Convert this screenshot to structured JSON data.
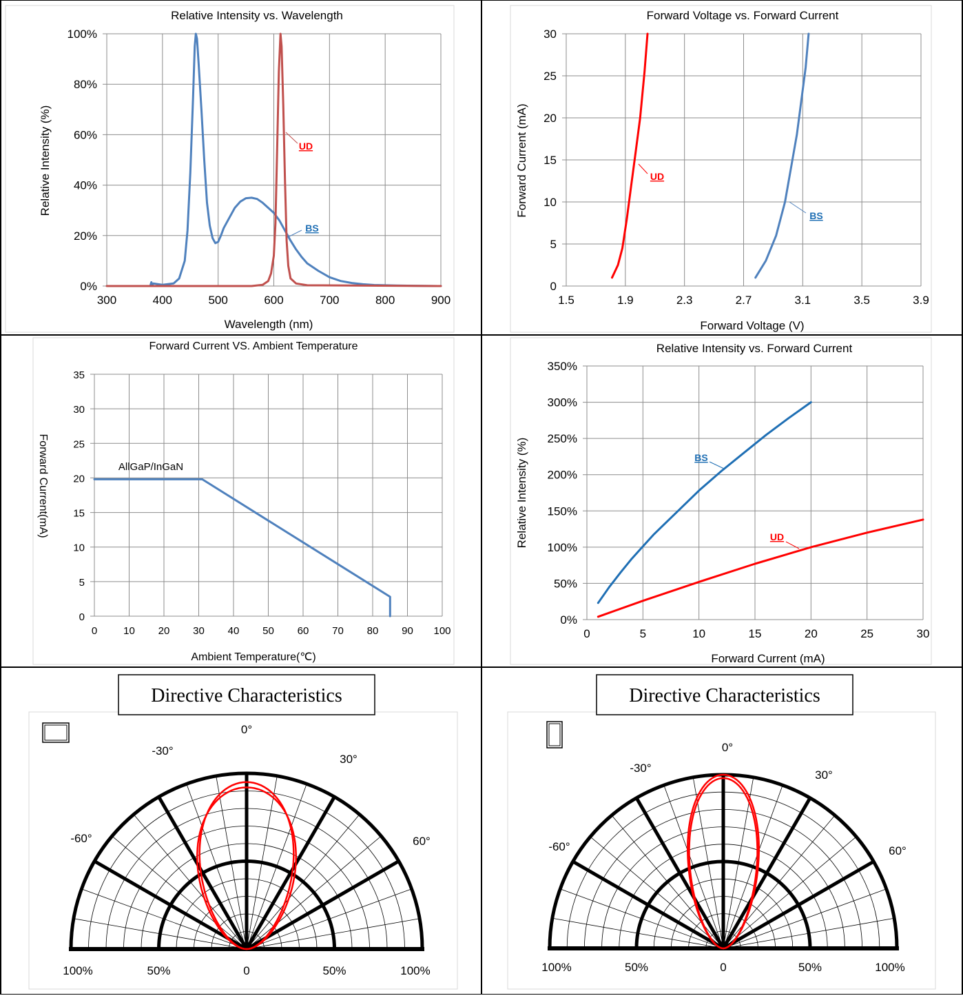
{
  "colors": {
    "blue": "#4f81bd",
    "blue_dark": "#1f6fb4",
    "red": "#ff0000",
    "red_dark": "#c0504d",
    "grid": "#8c8c8c",
    "frame": "#d9d9d9",
    "black": "#000000"
  },
  "chart_data": [
    {
      "type": "line",
      "title": "Relative Intensity vs. Wavelength",
      "xlabel": "Wavelength (nm)",
      "ylabel": "Relative Intensity (%)",
      "xlim": [
        300,
        900
      ],
      "ylim": [
        0,
        100
      ],
      "x_ticks": [
        "300",
        "400",
        "500",
        "600",
        "700",
        "800",
        "900"
      ],
      "y_ticks": [
        "0%",
        "20%",
        "40%",
        "60%",
        "80%",
        "100%"
      ],
      "grid": true,
      "series": [
        {
          "name": "BS",
          "color": "blue",
          "x": [
            378,
            380,
            382,
            384,
            400,
            420,
            430,
            440,
            445,
            450,
            455,
            458,
            460,
            462,
            465,
            470,
            475,
            480,
            485,
            490,
            495,
            500,
            505,
            510,
            520,
            530,
            540,
            550,
            560,
            570,
            580,
            590,
            600,
            610,
            620,
            630,
            640,
            650,
            660,
            680,
            700,
            720,
            740,
            760,
            780,
            800,
            820,
            850,
            900
          ],
          "y": [
            0,
            1.5,
            0.5,
            1,
            0.5,
            1,
            3,
            10,
            22,
            45,
            75,
            95,
            100,
            98,
            88,
            70,
            50,
            33,
            24,
            19,
            17,
            17.5,
            20,
            23,
            27,
            31,
            33.5,
            34.8,
            35,
            34.5,
            33,
            31,
            29,
            26,
            22,
            18,
            14.5,
            11.5,
            9,
            6,
            3.5,
            2,
            1.2,
            0.7,
            0.4,
            0.3,
            0.2,
            0.1,
            0
          ]
        },
        {
          "name": "UD",
          "color": "red_dark",
          "x": [
            300,
            560,
            580,
            590,
            595,
            600,
            603,
            606,
            609,
            612,
            614,
            617,
            620,
            623,
            626,
            630,
            640,
            660,
            900
          ],
          "y": [
            0,
            0,
            0.5,
            2,
            5,
            12,
            25,
            55,
            85,
            100,
            95,
            72,
            42,
            18,
            8,
            3,
            1,
            0.3,
            0
          ]
        }
      ]
    },
    {
      "type": "line",
      "title": "Forward Voltage vs. Forward Current",
      "xlabel": "Forward Voltage (V)",
      "ylabel": "Forward Current (mA)",
      "xlim": [
        1.5,
        3.9
      ],
      "ylim": [
        0,
        30
      ],
      "x_ticks": [
        "1.5",
        "1.9",
        "2.3",
        "2.7",
        "3.1",
        "3.5",
        "3.9"
      ],
      "y_ticks": [
        "0",
        "5",
        "10",
        "15",
        "20",
        "25",
        "30"
      ],
      "grid": true,
      "series": [
        {
          "name": "UD",
          "color": "red",
          "x": [
            1.81,
            1.85,
            1.88,
            1.91,
            1.94,
            1.97,
            2.0,
            2.03,
            2.05
          ],
          "y": [
            1,
            2.5,
            4.5,
            8,
            12,
            16,
            20,
            25.5,
            30
          ]
        },
        {
          "name": "BS",
          "color": "blue",
          "x": [
            2.78,
            2.85,
            2.92,
            2.98,
            3.02,
            3.06,
            3.09,
            3.12,
            3.14
          ],
          "y": [
            1,
            3,
            6,
            10,
            14,
            18,
            22,
            26,
            30
          ]
        }
      ]
    },
    {
      "type": "line",
      "title": "Forward Current VS. Ambient Temperature",
      "xlabel": "Ambient Temperature(℃)",
      "ylabel": "Forward  Current(mA)",
      "xlim": [
        0,
        100
      ],
      "ylim": [
        0,
        35
      ],
      "x_ticks": [
        "0",
        "10",
        "20",
        "30",
        "40",
        "50",
        "60",
        "70",
        "80",
        "90",
        "100"
      ],
      "y_ticks": [
        "0",
        "5",
        "10",
        "15",
        "20",
        "25",
        "30",
        "35"
      ],
      "grid": true,
      "annotation": "AllGaP/InGaN",
      "series": [
        {
          "color": "blue",
          "x": [
            0,
            31,
            85,
            85
          ],
          "y": [
            19.8,
            19.8,
            2.8,
            0
          ]
        }
      ]
    },
    {
      "type": "line",
      "title": "Relative Intensity vs. Forward Current",
      "xlabel": "Forward Current (mA)",
      "ylabel": "Relative Intensity (%)",
      "xlim": [
        0,
        30
      ],
      "ylim": [
        0,
        350
      ],
      "x_ticks": [
        "0",
        "5",
        "10",
        "15",
        "20",
        "25",
        "30"
      ],
      "y_ticks": [
        "0%",
        "50%",
        "100%",
        "150%",
        "200%",
        "250%",
        "300%",
        "350%"
      ],
      "grid": true,
      "series": [
        {
          "name": "BS",
          "color": "blue_dark",
          "x": [
            1,
            2,
            3,
            4,
            5,
            6,
            8,
            10,
            12,
            14,
            16,
            18,
            20
          ],
          "y": [
            23,
            45,
            65,
            84,
            101,
            118,
            148,
            178,
            205,
            230,
            255,
            278,
            300
          ]
        },
        {
          "name": "UD",
          "color": "red",
          "x": [
            1,
            5,
            10,
            15,
            20,
            25,
            30
          ],
          "y": [
            4,
            26,
            52,
            77,
            100,
            120,
            138
          ]
        }
      ]
    },
    {
      "type": "polar",
      "title": "Directive Characteristics",
      "angle_labels": [
        "-60°",
        "-30°",
        "0°",
        "30°",
        "60°"
      ],
      "radial_labels": [
        "100%",
        "50%",
        "0",
        "50%",
        "100%"
      ],
      "curves": [
        {
          "color": "red",
          "cx_offset": 0.0,
          "width": 0.63,
          "height": 0.92
        },
        {
          "color": "red",
          "cx_offset": 0.0,
          "width": 0.6,
          "height": 0.95
        }
      ]
    },
    {
      "type": "polar",
      "title": "Directive Characteristics",
      "angle_labels": [
        "-60°",
        "-30°",
        "0°",
        "30°",
        "60°"
      ],
      "radial_labels": [
        "100%",
        "50%",
        "0",
        "50%",
        "100%"
      ],
      "curves": [
        {
          "color": "red",
          "cx_offset": 0.0,
          "width": 0.46,
          "height": 1.0
        },
        {
          "color": "red",
          "cx_offset": 0.0,
          "width": 0.44,
          "height": 0.98
        }
      ]
    }
  ]
}
